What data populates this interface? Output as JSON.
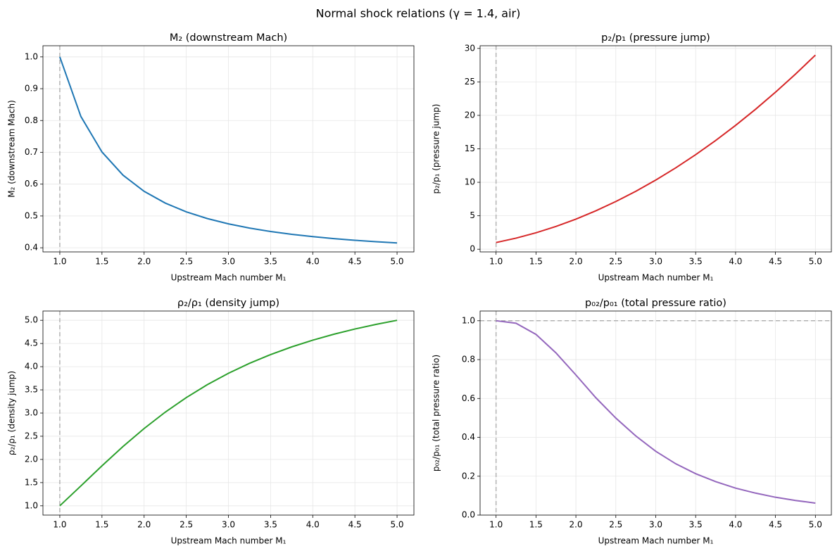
{
  "title": "Normal shock relations (γ = 1.4, air)",
  "chart_data": [
    {
      "type": "line",
      "title": "M₂ (downstream Mach)",
      "x_label": "Upstream Mach number M₁",
      "y_label": "M₂ (downstream Mach)",
      "x": [
        1,
        1.25,
        1.5,
        1.75,
        2,
        2.25,
        2.5,
        2.75,
        3,
        3.25,
        3.5,
        3.75,
        4,
        4.25,
        4.5,
        4.75,
        5
      ],
      "values": [
        1,
        0.8126,
        0.7011,
        0.6281,
        0.5774,
        0.5406,
        0.513,
        0.4918,
        0.4752,
        0.4619,
        0.4512,
        0.4423,
        0.435,
        0.4288,
        0.4236,
        0.4191,
        0.4152
      ],
      "color": "#1f77b4",
      "vline": 1,
      "grid": true,
      "xlim": [
        0.8,
        5.2
      ],
      "xticks": [
        {
          "value": 1,
          "label": "1.0"
        },
        1.5,
        {
          "value": 2,
          "label": "2.0"
        },
        2.5,
        {
          "value": 3,
          "label": "3.0"
        },
        3.5,
        {
          "value": 4,
          "label": "4.0"
        },
        4.5,
        {
          "value": 5,
          "label": "5.0"
        }
      ],
      "ylim": [
        0.387,
        1.035
      ],
      "yticks": [
        0.4,
        0.5,
        0.6,
        0.7,
        0.8,
        0.9,
        {
          "value": 1,
          "label": "1.0"
        }
      ]
    },
    {
      "type": "line",
      "title": "p₂/p₁ (pressure jump)",
      "x_label": "Upstream Mach number M₁",
      "y_label": "p₂/p₁ (pressure jump)",
      "x": [
        1,
        1.25,
        1.5,
        1.75,
        2,
        2.25,
        2.5,
        2.75,
        3,
        3.25,
        3.5,
        3.75,
        4,
        4.25,
        4.5,
        4.75,
        5
      ],
      "values": [
        1,
        1.6563,
        2.4583,
        3.4063,
        4.5,
        5.7396,
        7.125,
        8.6563,
        10.333,
        12.156,
        14.125,
        16.24,
        18.5,
        20.906,
        23.458,
        26.156,
        29
      ],
      "color": "#d62728",
      "vline": 1,
      "grid": true,
      "xlim": [
        0.8,
        5.2
      ],
      "xticks": [
        {
          "value": 1,
          "label": "1.0"
        },
        1.5,
        {
          "value": 2,
          "label": "2.0"
        },
        2.5,
        {
          "value": 3,
          "label": "3.0"
        },
        3.5,
        {
          "value": 4,
          "label": "4.0"
        },
        4.5,
        {
          "value": 5,
          "label": "5.0"
        }
      ],
      "ylim": [
        -0.4,
        30.4
      ],
      "yticks": [
        0,
        5,
        10,
        15,
        20,
        25,
        30
      ]
    },
    {
      "type": "line",
      "title": "ρ₂/ρ₁ (density jump)",
      "x_label": "Upstream Mach number M₁",
      "y_label": "ρ₂/ρ₁ (density jump)",
      "x": [
        1,
        1.25,
        1.5,
        1.75,
        2,
        2.25,
        2.5,
        2.75,
        3,
        3.25,
        3.5,
        3.75,
        4,
        4.25,
        4.5,
        4.75,
        5
      ],
      "values": [
        1,
        1.4286,
        1.8621,
        2.2791,
        2.6667,
        3.0186,
        3.3333,
        3.6119,
        3.8571,
        4.0723,
        4.2609,
        4.4262,
        4.5714,
        4.6992,
        4.8119,
        4.9116,
        5
      ],
      "color": "#2ca02c",
      "vline": 1,
      "grid": true,
      "xlim": [
        0.8,
        5.2
      ],
      "xticks": [
        {
          "value": 1,
          "label": "1.0"
        },
        1.5,
        {
          "value": 2,
          "label": "2.0"
        },
        2.5,
        {
          "value": 3,
          "label": "3.0"
        },
        3.5,
        {
          "value": 4,
          "label": "4.0"
        },
        4.5,
        {
          "value": 5,
          "label": "5.0"
        }
      ],
      "ylim": [
        0.8,
        5.2
      ],
      "yticks": [
        {
          "value": 1,
          "label": "1.0"
        },
        1.5,
        {
          "value": 2,
          "label": "2.0"
        },
        2.5,
        {
          "value": 3,
          "label": "3.0"
        },
        3.5,
        {
          "value": 4,
          "label": "4.0"
        },
        4.5,
        {
          "value": 5,
          "label": "5.0"
        }
      ]
    },
    {
      "type": "line",
      "title": "p₀₂/p₀₁ (total pressure ratio)",
      "x_label": "Upstream Mach number M₁",
      "y_label": "p₀₂/p₀₁ (total pressure ratio)",
      "x": [
        1,
        1.25,
        1.5,
        1.75,
        2,
        2.25,
        2.5,
        2.75,
        3,
        3.25,
        3.5,
        3.75,
        4,
        4.25,
        4.5,
        4.75,
        5
      ],
      "values": [
        1,
        0.9871,
        0.9298,
        0.8346,
        0.7209,
        0.6037,
        0.499,
        0.4072,
        0.3283,
        0.2641,
        0.2129,
        0.1722,
        0.1388,
        0.113,
        0.0917,
        0.0753,
        0.0617
      ],
      "color": "#9467bd",
      "vline": 1,
      "hline": 1,
      "grid": true,
      "xlim": [
        0.8,
        5.2
      ],
      "xticks": [
        {
          "value": 1,
          "label": "1.0"
        },
        1.5,
        {
          "value": 2,
          "label": "2.0"
        },
        2.5,
        {
          "value": 3,
          "label": "3.0"
        },
        3.5,
        {
          "value": 4,
          "label": "4.0"
        },
        4.5,
        {
          "value": 5,
          "label": "5.0"
        }
      ],
      "ylim": [
        0,
        1.05
      ],
      "yticks": [
        {
          "value": 0,
          "label": "0.0"
        },
        0.2,
        0.4,
        0.6,
        0.8,
        {
          "value": 1,
          "label": "1.0"
        }
      ]
    }
  ]
}
